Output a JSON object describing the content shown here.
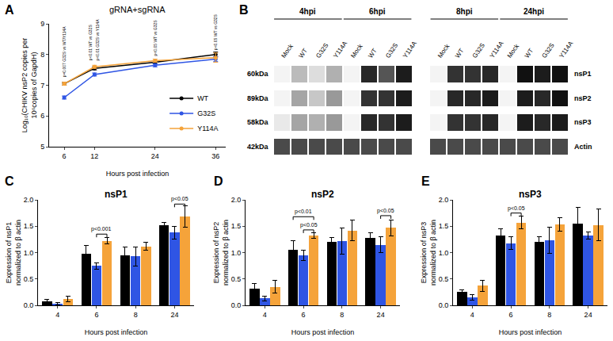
{
  "chart_data": [
    {
      "panel": "A",
      "type": "line",
      "title": "gRNA+sgRNA",
      "xlabel": "Hours post infection",
      "ylabel": [
        "Log₁₀(CHIKV nsP2 copies per",
        "10⁶copies of GapdH)"
      ],
      "x": [
        6,
        12,
        24,
        36
      ],
      "xlim": [
        3,
        38
      ],
      "xticks": [
        6,
        12,
        24,
        36
      ],
      "ylim": [
        5,
        9
      ],
      "yticks": [
        5,
        6,
        7,
        8,
        9
      ],
      "grid": false,
      "legend": "lower right",
      "series": [
        {
          "name": "WT",
          "color": "#000000",
          "values": [
            7.05,
            7.55,
            7.75,
            8.0
          ],
          "errors": [
            0.05,
            0.05,
            0.05,
            0.08
          ]
        },
        {
          "name": "G32S",
          "color": "#2f55e4",
          "values": [
            6.6,
            7.35,
            7.65,
            7.85
          ],
          "errors": [
            0.05,
            0.05,
            0.05,
            0.08
          ]
        },
        {
          "name": "Y114A",
          "color": "#f5a33a",
          "values": [
            7.05,
            7.6,
            7.8,
            7.9
          ],
          "errors": [
            0.05,
            0.05,
            0.05,
            0.15
          ]
        }
      ],
      "annotations": [
        {
          "x": 6,
          "y": 7.2,
          "text": "p=0.007 G32S vs WT/Y114A"
        },
        {
          "x": 11.3,
          "y": 7.75,
          "text": "p<0.01 WT vs G32S"
        },
        {
          "x": 12.5,
          "y": 7.75,
          "text": "p<0.01 G32S vs Y114A"
        },
        {
          "x": 24,
          "y": 7.9,
          "text": "p<0.05 WT vs G32S"
        },
        {
          "x": 36,
          "y": 8.1,
          "text": "p<0.05 WT vs G32S"
        }
      ]
    },
    {
      "panel": "B",
      "type": "blot",
      "groups": [
        "4hpi",
        "6hpi",
        "8hpi",
        "24hpi"
      ],
      "lanes": [
        "Mock",
        "WT",
        "G32S",
        "Y114A"
      ],
      "zlim": [
        0,
        1
      ],
      "rows": [
        {
          "name": "nsP1",
          "size": "60kDa",
          "values": [
            0,
            0.25,
            0.1,
            0.3,
            0,
            0.9,
            0.7,
            0.95,
            0,
            0.85,
            0.85,
            0.9,
            0,
            1.0,
            0.95,
            1.0
          ]
        },
        {
          "name": "nsP2",
          "size": "89kDa",
          "values": [
            0,
            0.35,
            0.2,
            0.4,
            0,
            0.85,
            0.85,
            0.95,
            0,
            0.9,
            0.9,
            0.95,
            0,
            0.95,
            0.9,
            1.0
          ]
        },
        {
          "name": "nsP3",
          "size": "58kDa",
          "values": [
            0.05,
            0.35,
            0.3,
            0.4,
            0,
            0.9,
            0.85,
            0.95,
            0,
            0.85,
            0.85,
            0.9,
            0,
            0.95,
            0.9,
            0.95
          ]
        },
        {
          "name": "Actin",
          "size": "42kDa",
          "values": [
            0.75,
            0.75,
            0.75,
            0.75,
            0.75,
            0.75,
            0.75,
            0.75,
            0.75,
            0.75,
            0.75,
            0.75,
            0.75,
            0.75,
            0.75,
            0.75
          ]
        }
      ]
    },
    {
      "panel": "C",
      "type": "bar",
      "title": "nsP1",
      "xlabel": "Hours post infection",
      "ylabel": [
        "Expression of nsP1",
        "normalized to β actin"
      ],
      "categories": [
        "4",
        "6",
        "8",
        "24"
      ],
      "ylim": [
        0,
        2
      ],
      "yticks": [
        {
          "value": 0,
          "label": "0.0"
        },
        0.5,
        {
          "value": 1,
          "label": "1.0"
        },
        1.5,
        {
          "value": 2,
          "label": "2.0"
        }
      ],
      "grid": false,
      "series": [
        {
          "name": "WT",
          "color": "#000000",
          "values": [
            0.08,
            0.98,
            0.95,
            1.52
          ],
          "errors": [
            0.03,
            0.15,
            0.15,
            0.05
          ]
        },
        {
          "name": "G32S",
          "color": "#2f55e4",
          "values": [
            0.03,
            0.75,
            0.93,
            1.38
          ],
          "errors": [
            0.02,
            0.06,
            0.18,
            0.12
          ]
        },
        {
          "name": "Y114A",
          "color": "#f5a33a",
          "values": [
            0.12,
            1.22,
            1.12,
            1.68
          ],
          "errors": [
            0.05,
            0.06,
            0.08,
            0.2
          ]
        }
      ],
      "brackets": [
        {
          "category": "6",
          "from": "G32S",
          "to": "Y114A",
          "y": 1.35,
          "text": "p<0.001"
        },
        {
          "category": "24",
          "from": "G32S",
          "to": "Y114A",
          "y": 1.92,
          "text": "p<0.05"
        }
      ]
    },
    {
      "panel": "D",
      "type": "bar",
      "title": "nsP2",
      "xlabel": "Hours post infection",
      "ylabel": [
        "Expression of nsP2",
        "normalized to β actin"
      ],
      "categories": [
        "4",
        "6",
        "8",
        "24"
      ],
      "ylim": [
        0,
        2
      ],
      "yticks": [
        {
          "value": 0,
          "label": "0.0"
        },
        0.5,
        {
          "value": 1,
          "label": "1.0"
        },
        1.5,
        {
          "value": 2,
          "label": "2.0"
        }
      ],
      "grid": false,
      "series": [
        {
          "name": "WT",
          "color": "#000000",
          "values": [
            0.32,
            1.05,
            1.2,
            1.28
          ],
          "errors": [
            0.1,
            0.18,
            0.08,
            0.1
          ]
        },
        {
          "name": "G32S",
          "color": "#2f55e4",
          "values": [
            0.13,
            0.95,
            1.22,
            1.15
          ],
          "errors": [
            0.05,
            0.1,
            0.25,
            0.15
          ]
        },
        {
          "name": "Y114A",
          "color": "#f5a33a",
          "values": [
            0.35,
            1.32,
            1.42,
            1.47
          ],
          "errors": [
            0.12,
            0.05,
            0.2,
            0.15
          ]
        }
      ],
      "brackets": [
        {
          "category": "6",
          "from": "WT",
          "to": "Y114A",
          "y": 1.68,
          "text": "p<0.01"
        },
        {
          "category": "6",
          "from": "G32S",
          "to": "Y114A",
          "y": 1.43,
          "text": "p<0.05"
        },
        {
          "category": "24",
          "from": "G32S",
          "to": "Y114A",
          "y": 1.7,
          "text": "p<0.05"
        }
      ]
    },
    {
      "panel": "E",
      "type": "bar",
      "title": "nsP3",
      "xlabel": "Hours post infection",
      "ylabel": [
        "Expression of nsP3",
        "normalized to β actin"
      ],
      "categories": [
        "4",
        "6",
        "8",
        "24"
      ],
      "ylim": [
        0,
        2
      ],
      "yticks": [
        {
          "value": 0,
          "label": "0.0"
        },
        0.5,
        {
          "value": 1,
          "label": "1.0"
        },
        1.5,
        {
          "value": 2,
          "label": "2.0"
        }
      ],
      "grid": false,
      "series": [
        {
          "name": "WT",
          "color": "#000000",
          "values": [
            0.26,
            1.32,
            1.2,
            1.55
          ],
          "errors": [
            0.03,
            0.13,
            0.1,
            0.3
          ]
        },
        {
          "name": "G32S",
          "color": "#2f55e4",
          "values": [
            0.15,
            1.18,
            1.23,
            1.32
          ],
          "errors": [
            0.05,
            0.12,
            0.25,
            0.07
          ]
        },
        {
          "name": "Y114A",
          "color": "#f5a33a",
          "values": [
            0.37,
            1.57,
            1.53,
            1.52
          ],
          "errors": [
            0.1,
            0.12,
            0.13,
            0.3
          ]
        }
      ],
      "brackets": [
        {
          "category": "6",
          "from": "G32S",
          "to": "Y114A",
          "y": 1.75,
          "text": "p<0.05"
        }
      ]
    }
  ]
}
